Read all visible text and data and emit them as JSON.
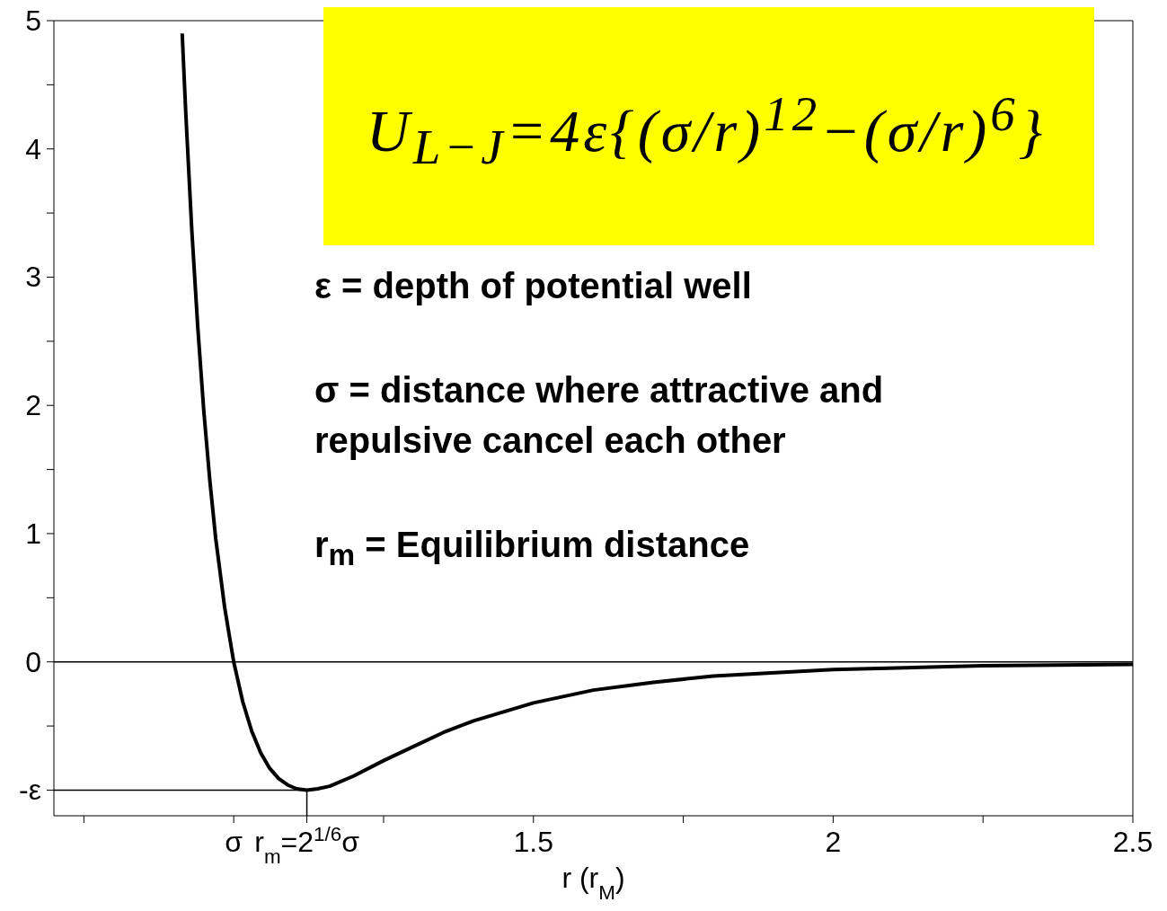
{
  "chart_data": {
    "type": "line",
    "xlabel": "r (r$_{M}$)",
    "xlim": [
      0.7,
      2.5
    ],
    "xticks": [
      {
        "value": 0.75,
        "label": null
      },
      {
        "value": 1,
        "label": "σ"
      },
      {
        "value": 1.122,
        "label": "r$_{m}$=2$^{1/6}$σ"
      },
      {
        "value": 1.25,
        "label": null
      },
      1.5,
      {
        "value": 1.75,
        "label": null
      },
      2,
      {
        "value": 2.25,
        "label": null
      },
      2.5
    ],
    "ylim": [
      -1.2,
      5
    ],
    "yticks": [
      {
        "value": -1,
        "label": "-ε"
      },
      {
        "value": -0.5,
        "label": null
      },
      0,
      {
        "value": 0.5,
        "label": null
      },
      1,
      {
        "value": 1.5,
        "label": null
      },
      2,
      {
        "value": 2.5,
        "label": null
      },
      3,
      {
        "value": 3.5,
        "label": null
      },
      4,
      {
        "value": 4.5,
        "label": null
      },
      5
    ],
    "series": [
      {
        "type": "line",
        "color": "#000000",
        "x": [
          0.914,
          0.92,
          0.93,
          0.94,
          0.95,
          0.96,
          0.97,
          0.985,
          1.0,
          1.015,
          1.03,
          1.045,
          1.06,
          1.075,
          1.09,
          1.105,
          1.122,
          1.14,
          1.16,
          1.2,
          1.25,
          1.3,
          1.35,
          1.4,
          1.5,
          1.6,
          1.7,
          1.8,
          2.0,
          2.25,
          2.5
        ],
        "values": [
          4.9,
          4.28,
          3.37,
          2.61,
          1.96,
          1.42,
          0.96,
          0.42,
          0,
          -0.31,
          -0.54,
          -0.71,
          -0.83,
          -0.91,
          -0.96,
          -0.99,
          -1,
          -0.99,
          -0.97,
          -0.89,
          -0.77,
          -0.66,
          -0.55,
          -0.46,
          -0.32,
          -0.22,
          -0.16,
          -0.11,
          -0.06,
          -0.03,
          -0.02
        ]
      },
      {
        "type": "line",
        "color": "#000000",
        "x": [
          0.7,
          1.122,
          1.122
        ],
        "values": [
          -1,
          -1,
          -1.2
        ]
      }
    ],
    "ref_lines": [
      {
        "axis": "y",
        "value": 0,
        "color": "#000000"
      }
    ],
    "annotations": [
      "U$_{L−J}$=4ε{(σ/r)$^{12}$−(σ/r)$^{6}$}",
      "ε = depth of potential well",
      "σ = distance where attractive and repulsive cancel each other",
      "r$_{m}$ = Equilibrium distance"
    ],
    "grid": false,
    "marker": "none",
    "line_style": "solid"
  }
}
